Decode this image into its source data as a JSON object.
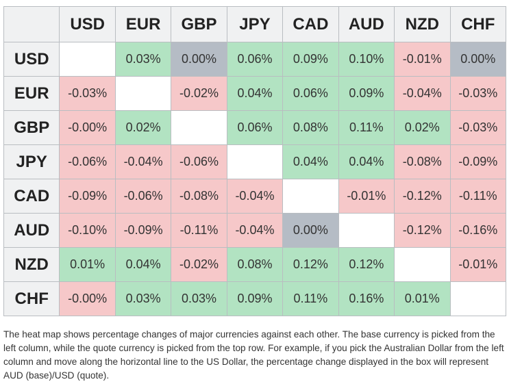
{
  "chart_data": {
    "type": "heatmap",
    "columns": [
      "USD",
      "EUR",
      "GBP",
      "JPY",
      "CAD",
      "AUD",
      "NZD",
      "CHF"
    ],
    "rows": [
      "USD",
      "EUR",
      "GBP",
      "JPY",
      "CAD",
      "AUD",
      "NZD",
      "CHF"
    ],
    "values": [
      [
        null,
        0.03,
        0.0,
        0.06,
        0.09,
        0.1,
        -0.01,
        0.0
      ],
      [
        -0.03,
        null,
        -0.02,
        0.04,
        0.06,
        0.09,
        -0.04,
        -0.03
      ],
      [
        -0.0,
        0.02,
        null,
        0.06,
        0.08,
        0.11,
        0.02,
        -0.03
      ],
      [
        -0.06,
        -0.04,
        -0.06,
        null,
        0.04,
        0.04,
        -0.08,
        -0.09
      ],
      [
        -0.09,
        -0.06,
        -0.08,
        -0.04,
        null,
        -0.01,
        -0.12,
        -0.11
      ],
      [
        -0.1,
        -0.09,
        -0.11,
        -0.04,
        0.0,
        null,
        -0.12,
        -0.16
      ],
      [
        0.01,
        0.04,
        -0.02,
        0.08,
        0.12,
        0.12,
        null,
        -0.01
      ],
      [
        -0.0,
        0.03,
        0.03,
        0.09,
        0.11,
        0.16,
        0.01,
        null
      ]
    ],
    "cells": [
      [
        "",
        "0.03%",
        "0.00%",
        "0.06%",
        "0.09%",
        "0.10%",
        "-0.01%",
        "0.00%"
      ],
      [
        "-0.03%",
        "",
        "-0.02%",
        "0.04%",
        "0.06%",
        "0.09%",
        "-0.04%",
        "-0.03%"
      ],
      [
        "-0.00%",
        "0.02%",
        "",
        "0.06%",
        "0.08%",
        "0.11%",
        "0.02%",
        "-0.03%"
      ],
      [
        "-0.06%",
        "-0.04%",
        "-0.06%",
        "",
        "0.04%",
        "0.04%",
        "-0.08%",
        "-0.09%"
      ],
      [
        "-0.09%",
        "-0.06%",
        "-0.08%",
        "-0.04%",
        "",
        "-0.01%",
        "-0.12%",
        "-0.11%"
      ],
      [
        "-0.10%",
        "-0.09%",
        "-0.11%",
        "-0.04%",
        "0.00%",
        "",
        "-0.12%",
        "-0.16%"
      ],
      [
        "0.01%",
        "0.04%",
        "-0.02%",
        "0.08%",
        "0.12%",
        "0.12%",
        "",
        "-0.01%"
      ],
      [
        "-0.00%",
        "0.03%",
        "0.03%",
        "0.09%",
        "0.11%",
        "0.16%",
        "0.01%",
        ""
      ]
    ],
    "colors": {
      "positive": "#b2e3c2",
      "negative": "#f6c8c9",
      "zero": "#b5bcc5",
      "diagonal": "#ffffff",
      "header": "#f0f1f2"
    }
  },
  "caption": "The heat map shows percentage changes of major currencies against each other. The base currency is picked from the left column, while the quote currency is picked from the top row. For example, if you pick the Australian Dollar from the left column and move along the horizontal line to the US Dollar, the percentage change displayed in the box will represent AUD (base)/USD (quote)."
}
